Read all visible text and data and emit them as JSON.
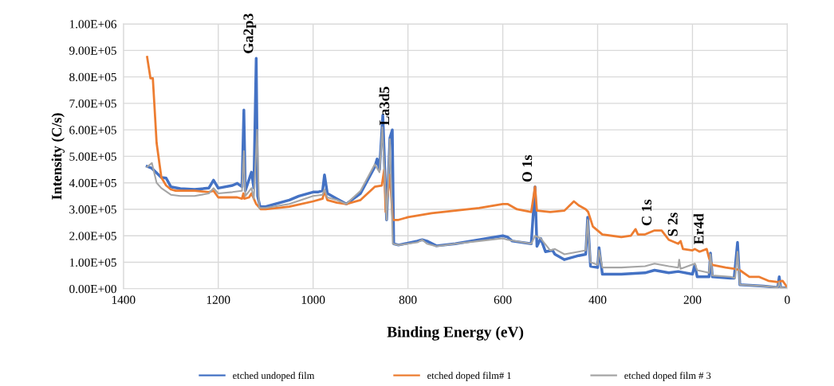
{
  "chart_data": {
    "type": "line",
    "xlabel": "Binding Energy (eV)",
    "ylabel": "Intensity (C/s)",
    "xlim": [
      1400,
      0
    ],
    "xticks": [
      1400,
      1200,
      1000,
      800,
      600,
      400,
      200,
      0
    ],
    "ylim": [
      0,
      1000000
    ],
    "yticks": [
      {
        "value": 0,
        "label": "0.00E+00"
      },
      {
        "value": 100000,
        "label": "1.00E+05"
      },
      {
        "value": 200000,
        "label": "2.00E+05"
      },
      {
        "value": 300000,
        "label": "3.00E+05"
      },
      {
        "value": 400000,
        "label": "4.00E+05"
      },
      {
        "value": 500000,
        "label": "5.00E+05"
      },
      {
        "value": 600000,
        "label": "6.00E+05"
      },
      {
        "value": 700000,
        "label": "7.00E+05"
      },
      {
        "value": 800000,
        "label": "8.00E+05"
      },
      {
        "value": 900000,
        "label": "9.00E+05"
      },
      {
        "value": 1000000,
        "label": "1.00E+06"
      }
    ],
    "grid": true,
    "legend": "bottom",
    "marker": "none",
    "line_style": "solid",
    "annotations": [
      {
        "text": "Ga2p3",
        "x": 1120,
        "y": 870000
      },
      {
        "text": "La3d5",
        "x": 833,
        "y": 600000
      },
      {
        "text": "O 1s",
        "x": 532,
        "y": 385000
      },
      {
        "text": "C 1s",
        "x": 280,
        "y": 220000
      },
      {
        "text": "S 2s",
        "x": 225,
        "y": 180000
      },
      {
        "text": "Er4d",
        "x": 170,
        "y": 150000
      }
    ],
    "series": [
      {
        "name": "etched undoped film",
        "color": "#4472c4",
        "x": [
          1350,
          1340,
          1320,
          1310,
          1300,
          1280,
          1250,
          1220,
          1210,
          1200,
          1170,
          1160,
          1150,
          1146,
          1143,
          1130,
          1125,
          1120,
          1117,
          1112,
          1100,
          1050,
          1030,
          1000,
          990,
          980,
          976,
          970,
          950,
          930,
          900,
          870,
          865,
          860,
          853,
          845,
          838,
          833,
          830,
          820,
          780,
          770,
          760,
          740,
          700,
          650,
          600,
          590,
          580,
          540,
          532,
          528,
          520,
          510,
          495,
          490,
          470,
          440,
          425,
          421,
          415,
          400,
          397,
          390,
          350,
          300,
          280,
          250,
          230,
          200,
          195,
          190,
          165,
          162,
          158,
          120,
          112,
          105,
          100,
          50,
          20,
          17,
          14,
          5,
          0
        ],
        "values": [
          462000,
          455000,
          420000,
          418000,
          385000,
          378000,
          375000,
          380000,
          410000,
          380000,
          390000,
          398000,
          385000,
          675000,
          370000,
          440000,
          380000,
          870000,
          350000,
          310000,
          310000,
          335000,
          350000,
          365000,
          365000,
          370000,
          430000,
          360000,
          340000,
          320000,
          360000,
          460000,
          490000,
          450000,
          655000,
          260000,
          570000,
          600000,
          170000,
          165000,
          180000,
          185000,
          180000,
          162000,
          170000,
          185000,
          200000,
          195000,
          180000,
          170000,
          385000,
          160000,
          190000,
          140000,
          145000,
          130000,
          110000,
          125000,
          130000,
          270000,
          85000,
          80000,
          155000,
          55000,
          55000,
          60000,
          70000,
          60000,
          65000,
          55000,
          90000,
          45000,
          45000,
          135000,
          45000,
          40000,
          40000,
          175000,
          15000,
          10000,
          5000,
          45000,
          5000,
          3000,
          2000
        ]
      },
      {
        "name": "etched doped film# 1",
        "color": "#ed7d31",
        "x": [
          1350,
          1343,
          1338,
          1330,
          1320,
          1310,
          1300,
          1290,
          1250,
          1220,
          1210,
          1200,
          1160,
          1150,
          1147,
          1145,
          1135,
          1130,
          1120,
          1110,
          1100,
          1050,
          1000,
          980,
          976,
          970,
          950,
          930,
          900,
          870,
          855,
          850,
          847,
          838,
          832,
          820,
          800,
          750,
          700,
          650,
          600,
          590,
          570,
          540,
          532,
          528,
          500,
          470,
          450,
          440,
          425,
          420,
          410,
          400,
          390,
          350,
          330,
          320,
          315,
          300,
          280,
          265,
          250,
          230,
          225,
          220,
          200,
          195,
          185,
          170,
          165,
          158,
          130,
          110,
          100,
          80,
          60,
          40,
          20,
          10,
          0
        ],
        "values": [
          875000,
          795000,
          795000,
          550000,
          420000,
          390000,
          375000,
          370000,
          370000,
          365000,
          370000,
          345000,
          345000,
          340000,
          360000,
          340000,
          345000,
          360000,
          320000,
          300000,
          300000,
          310000,
          330000,
          340000,
          370000,
          335000,
          325000,
          320000,
          335000,
          385000,
          390000,
          450000,
          290000,
          430000,
          260000,
          260000,
          270000,
          285000,
          295000,
          305000,
          320000,
          320000,
          300000,
          290000,
          385000,
          295000,
          290000,
          295000,
          330000,
          315000,
          300000,
          290000,
          235000,
          220000,
          205000,
          195000,
          200000,
          225000,
          205000,
          205000,
          220000,
          220000,
          185000,
          170000,
          180000,
          150000,
          145000,
          150000,
          140000,
          150000,
          115000,
          90000,
          80000,
          75000,
          70000,
          45000,
          45000,
          30000,
          25000,
          30000,
          5000
        ]
      },
      {
        "name": "etched doped film # 3",
        "color": "#a5a5a5",
        "x": [
          1350,
          1340,
          1330,
          1320,
          1300,
          1280,
          1250,
          1220,
          1210,
          1200,
          1170,
          1150,
          1146,
          1143,
          1130,
          1125,
          1118,
          1114,
          1100,
          1050,
          1000,
          980,
          976,
          970,
          950,
          930,
          900,
          870,
          860,
          854,
          845,
          838,
          832,
          820,
          780,
          770,
          760,
          740,
          700,
          650,
          600,
          590,
          540,
          532,
          520,
          500,
          490,
          470,
          440,
          425,
          421,
          415,
          400,
          397,
          390,
          350,
          300,
          280,
          250,
          230,
          228,
          225,
          195,
          190,
          165,
          162,
          158,
          120,
          110,
          105,
          100,
          50,
          20,
          17,
          14,
          0
        ],
        "values": [
          460000,
          475000,
          400000,
          380000,
          355000,
          350000,
          350000,
          360000,
          380000,
          360000,
          365000,
          370000,
          520000,
          350000,
          380000,
          340000,
          600000,
          305000,
          305000,
          320000,
          350000,
          355000,
          375000,
          345000,
          335000,
          320000,
          370000,
          470000,
          440000,
          610000,
          260000,
          565000,
          170000,
          165000,
          175000,
          185000,
          170000,
          160000,
          170000,
          180000,
          190000,
          185000,
          170000,
          200000,
          190000,
          145000,
          150000,
          130000,
          140000,
          145000,
          260000,
          100000,
          90000,
          145000,
          80000,
          80000,
          85000,
          95000,
          85000,
          80000,
          110000,
          75000,
          95000,
          70000,
          60000,
          130000,
          50000,
          45000,
          40000,
          140000,
          15000,
          10000,
          5000,
          25000,
          5000,
          2000
        ]
      }
    ]
  }
}
